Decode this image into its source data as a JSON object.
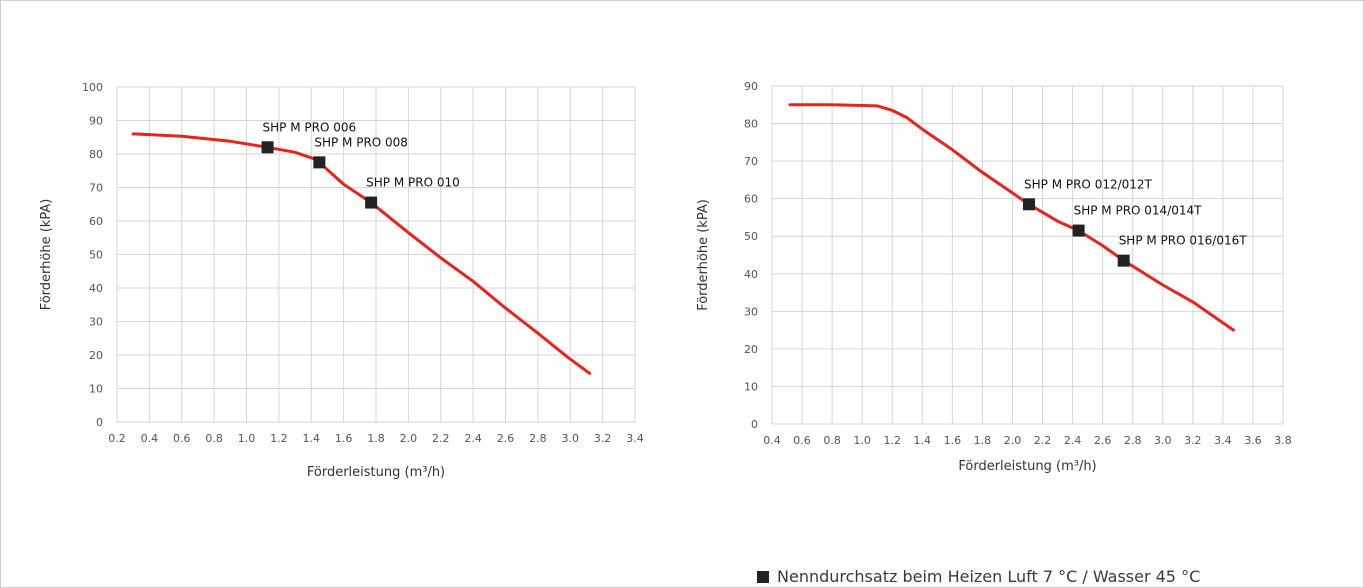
{
  "colors": {
    "curve": "#e8231b",
    "marker": "#222222",
    "grid": "#d6d6d6",
    "axis_text": "#555555"
  },
  "legend": {
    "label": "Nenndurchsatz beim Heizen Luft 7 °C / Wasser 45 °C",
    "marker": "square-icon"
  },
  "chart_data": [
    {
      "type": "line",
      "title": "",
      "xlabel": "Förderleistung (m³/h)",
      "ylabel": "Förderhöhe (kPA)",
      "xlim": [
        0.2,
        3.4
      ],
      "ylim": [
        0,
        100
      ],
      "xticks": [
        0.2,
        0.4,
        0.6,
        0.8,
        1.0,
        1.2,
        1.4,
        1.6,
        1.8,
        2.0,
        2.2,
        2.4,
        2.6,
        2.8,
        3.0,
        3.2,
        3.4
      ],
      "xtick_labels": [
        "0.2",
        "0.4",
        "0.6",
        "0.8",
        "1.0",
        "1.2",
        "1.4",
        "1.6",
        "1.8",
        "2.0",
        "2.2",
        "2.4",
        "2.6",
        "2.8",
        "3.0",
        "3.2",
        "3.4"
      ],
      "yticks": [
        0,
        10,
        20,
        30,
        40,
        50,
        60,
        70,
        80,
        90,
        100
      ],
      "ytick_labels": [
        "0",
        "10",
        "20",
        "30",
        "40",
        "50",
        "60",
        "70",
        "80",
        "90",
        "100"
      ],
      "grid": true,
      "series": [
        {
          "x": [
            0.3,
            0.6,
            0.9,
            1.13,
            1.3,
            1.42,
            1.45,
            1.6,
            1.77,
            2.0,
            2.2,
            2.4,
            2.6,
            2.8,
            2.98,
            3.12
          ],
          "y": [
            86,
            85.3,
            83.8,
            82,
            80.5,
            78.5,
            77.5,
            71,
            65.5,
            56.5,
            49,
            42,
            34,
            26.5,
            19.5,
            14.5
          ]
        }
      ],
      "points": [
        {
          "x": 1.13,
          "y": 82,
          "label": "SHP M PRO 006"
        },
        {
          "x": 1.45,
          "y": 77.5,
          "label": "SHP M PRO 008"
        },
        {
          "x": 1.77,
          "y": 65.5,
          "label": "SHP M PRO 010"
        }
      ]
    },
    {
      "type": "line",
      "title": "",
      "xlabel": "Förderleistung (m³/h)",
      "ylabel": "Förderhöhe (kPA)",
      "xlim": [
        0.4,
        3.8
      ],
      "ylim": [
        0,
        90
      ],
      "xticks": [
        0.4,
        0.6,
        0.8,
        1.0,
        1.2,
        1.4,
        1.6,
        1.8,
        2.0,
        2.2,
        2.4,
        2.6,
        2.8,
        3.0,
        3.2,
        3.4,
        3.6,
        3.8
      ],
      "xtick_labels": [
        "0.4",
        "0.6",
        "0.8",
        "1.0",
        "1.2",
        "1.4",
        "1.6",
        "1.8",
        "2.0",
        "2.2",
        "2.4",
        "2.6",
        "2.8",
        "3.0",
        "3.2",
        "3.4",
        "3.6",
        "3.8"
      ],
      "yticks": [
        0,
        10,
        20,
        30,
        40,
        50,
        60,
        70,
        80,
        90
      ],
      "ytick_labels": [
        "0",
        "10",
        "20",
        "30",
        "40",
        "50",
        "60",
        "70",
        "80",
        "90"
      ],
      "grid": true,
      "series": [
        {
          "x": [
            0.52,
            0.8,
            1.0,
            1.1,
            1.2,
            1.3,
            1.4,
            1.6,
            1.8,
            2.0,
            2.11,
            2.3,
            2.44,
            2.6,
            2.74,
            3.0,
            3.2,
            3.47
          ],
          "y": [
            85,
            85,
            84.8,
            84.7,
            83.5,
            81.5,
            78.5,
            73,
            67,
            61.5,
            58.5,
            54,
            51.5,
            47.5,
            43.5,
            37,
            32.5,
            25
          ]
        }
      ],
      "points": [
        {
          "x": 2.11,
          "y": 58.5,
          "label": "SHP M PRO 012/012T"
        },
        {
          "x": 2.44,
          "y": 51.5,
          "label": "SHP M PRO 014/014T"
        },
        {
          "x": 2.74,
          "y": 43.5,
          "label": "SHP M PRO 016/016T"
        }
      ]
    }
  ]
}
